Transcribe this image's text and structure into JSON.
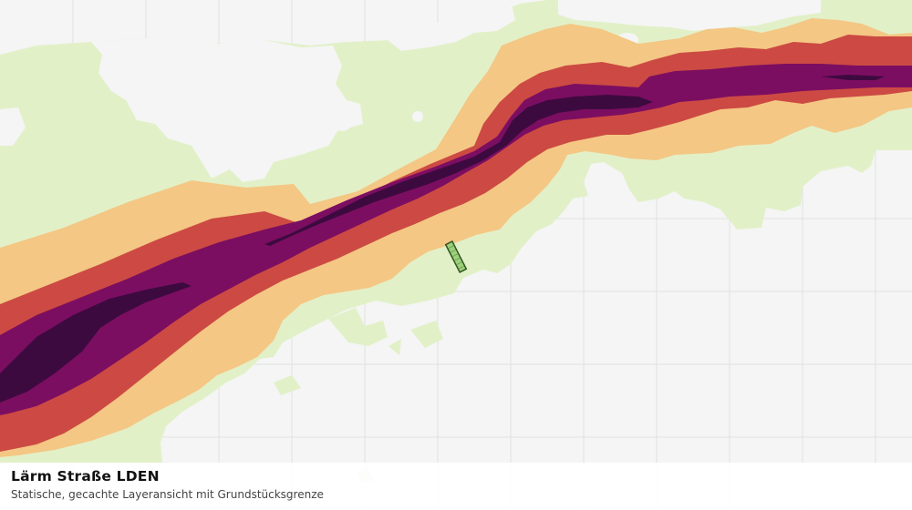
{
  "map": {
    "layer": "Lärm Straße LDEN",
    "noise_band_colors": [
      "#e2f0c8",
      "#f4c784",
      "#cc4a43",
      "#7c0e61",
      "#3d0a40"
    ],
    "parcel_colors": {
      "fill": "#9ecf7a",
      "stroke": "#2f5524"
    },
    "background": "#f4f5f4",
    "grid_color": "#dfe2df"
  },
  "caption": {
    "title": "Lärm Straße LDEN",
    "subtitle": "Statische, gecachte Layeransicht mit Grundstücksgrenze"
  }
}
